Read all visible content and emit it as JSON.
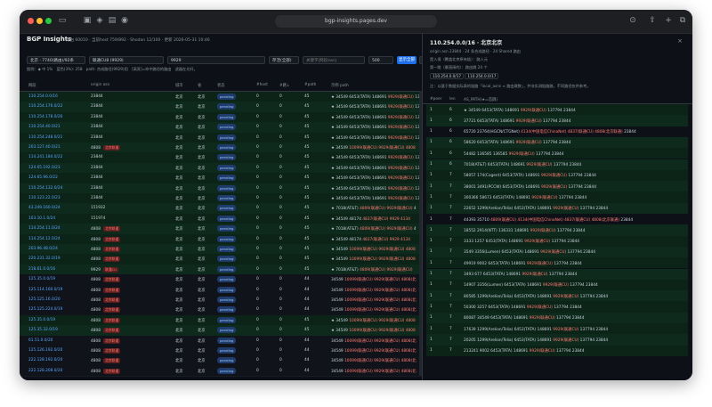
{
  "browser": {
    "url": "bgp-insights.pages.dev",
    "colors": {
      "close": "#ff5f57",
      "min": "#febc2e",
      "max": "#28c840"
    },
    "icons": [
      "sidebar-icon",
      "tab-icon",
      "shield-icon",
      "refresh-icon",
      "download-icon",
      "share-icon",
      "new-tab-icon",
      "tabs-icon"
    ]
  },
  "header": {
    "title": "BGP Insights",
    "meta": "路由 60010 · 当前host 759/892 · Shodan 12/100 · 更新 2026-05-31 10:46"
  },
  "filters": {
    "region": "北京 · 7740(路由)/92条",
    "carrier": "联通CU8 (9929)",
    "asn": "9929",
    "status": "存活(全部)",
    "search_placeholder": "关键字(网段/asn)",
    "limit": "500",
    "query_button": "显示全部",
    "export_button": "导出"
  },
  "legend": "图例：◆ 中 1%　蓝色(3%): 258　path: 合成路径(9929)用　[高亮]=命中路径的路由　滤器在光纤。",
  "table": {
    "columns": [
      "网段",
      "origin asn",
      "城市",
      "省",
      "状态",
      "#host",
      "#路↓",
      "#path",
      "示例 path"
    ],
    "rows": [
      {
        "prefix": "110.254.0.0/16",
        "asn": "23844",
        "asn_tag": "",
        "city": "北京",
        "prov": "北京",
        "status": "pending",
        "host": "0",
        "routes": "0",
        "paths": "45",
        "path": "★ 34549 6453(TATA) 148691 9929(联通CU) 137"
      },
      {
        "prefix": "110.254.176.0/22",
        "asn": "23844",
        "asn_tag": "",
        "city": "北京",
        "prov": "北京",
        "status": "pending",
        "host": "0",
        "routes": "0",
        "paths": "45",
        "path": "★ 34549 6453(TATA) 148691 9929(联通CU) 137"
      },
      {
        "prefix": "110.254.178.0/26",
        "asn": "23844",
        "asn_tag": "",
        "city": "北京",
        "prov": "北京",
        "status": "pending",
        "host": "0",
        "routes": "0",
        "paths": "45",
        "path": "★ 34549 6453(TATA) 148691 9929(联通CU) 137"
      },
      {
        "prefix": "110.254.40.0/21",
        "asn": "23844",
        "asn_tag": "",
        "city": "北京",
        "prov": "北京",
        "status": "pending",
        "host": "0",
        "routes": "0",
        "paths": "45",
        "path": "★ 34549 6453(TATA) 148691 9929(联通CU) 137"
      },
      {
        "prefix": "110.254.248.0/21",
        "asn": "23844",
        "asn_tag": "",
        "city": "北京",
        "prov": "北京",
        "status": "pending",
        "host": "0",
        "routes": "0",
        "paths": "45",
        "path": "★ 34549 6453(TATA) 148691 9929(联通CU) 137"
      },
      {
        "prefix": "203.127.40.0/21",
        "asn": "4808",
        "asn_tag": "北京联通",
        "city": "北京",
        "prov": "北京",
        "status": "pending",
        "host": "0",
        "routes": "0",
        "paths": "45",
        "path": "★ 34549 10099(联通CU) 9929(联通CU) 4808"
      },
      {
        "prefix": "114.241.184.0/22",
        "asn": "23844",
        "asn_tag": "",
        "city": "北京",
        "prov": "北京",
        "status": "pending",
        "host": "0",
        "routes": "0",
        "paths": "45",
        "path": "★ 34549 6453(TATA) 148691 9929(联通CU) 137"
      },
      {
        "prefix": "124.65.192.0/23",
        "asn": "23844",
        "asn_tag": "",
        "city": "北京",
        "prov": "北京",
        "status": "pending",
        "host": "0",
        "routes": "0",
        "paths": "45",
        "path": "★ 34549 6453(TATA) 148691 9929(联通CU) 137"
      },
      {
        "prefix": "124.65.96.0/22",
        "asn": "23844",
        "asn_tag": "",
        "city": "北京",
        "prov": "北京",
        "status": "pending",
        "host": "0",
        "routes": "0",
        "paths": "45",
        "path": "★ 34549 6453(TATA) 148691 9929(联通CU) 137"
      },
      {
        "prefix": "110.254.132.0/24",
        "asn": "23844",
        "asn_tag": "",
        "city": "北京",
        "prov": "北京",
        "status": "pending",
        "host": "0",
        "routes": "0",
        "paths": "45",
        "path": "★ 34549 6453(TATA) 148691 9929(联通CU) 137"
      },
      {
        "prefix": "110.123.22.0/23",
        "asn": "23844",
        "asn_tag": "",
        "city": "北京",
        "prov": "北京",
        "status": "pending",
        "host": "0",
        "routes": "0",
        "paths": "45",
        "path": "★ 34549 6453(TATA) 148691 9929(联通CU) 137"
      },
      {
        "prefix": "43.249.160.0/24",
        "asn": "151932",
        "asn_tag": "",
        "city": "北京",
        "prov": "北京",
        "status": "pending",
        "host": "0",
        "routes": "0",
        "paths": "45",
        "path": "★ 7018(AT&T) 4809(联通CU) 9929(联通CU) 4"
      },
      {
        "prefix": "103.10.1.0/24",
        "asn": "151974",
        "asn_tag": "",
        "city": "北京",
        "prov": "北京",
        "status": "pending",
        "host": "0",
        "routes": "0",
        "paths": "45",
        "path": "★ 34549 48174 4837(联通CU) 9929 4134"
      },
      {
        "prefix": "114.254.11.0/24",
        "asn": "4808",
        "asn_tag": "北京联通",
        "city": "北京",
        "prov": "北京",
        "status": "pending",
        "host": "0",
        "routes": "0",
        "paths": "45",
        "path": "★ 7018(AT&T) 4809(联通CU) 9929(联通CU) 4"
      },
      {
        "prefix": "114.254.12.0/24",
        "asn": "4808",
        "asn_tag": "北京联通",
        "city": "北京",
        "prov": "北京",
        "status": "pending",
        "host": "0",
        "routes": "0",
        "paths": "45",
        "path": "★ 34549 48174 4837(联通CU) 9929 4134"
      },
      {
        "prefix": "203.96.48.0/24",
        "asn": "4808",
        "asn_tag": "北京联通",
        "city": "北京",
        "prov": "北京",
        "status": "pending",
        "host": "0",
        "routes": "0",
        "paths": "45",
        "path": "★ 34549 10099(联通CU) 9929(联通CU) 4808"
      },
      {
        "prefix": "220.231.32.0/19",
        "asn": "4808",
        "asn_tag": "北京联通",
        "city": "北京",
        "prov": "北京",
        "status": "pending",
        "host": "0",
        "routes": "0",
        "paths": "45",
        "path": "★ 34549 10099(联通CU) 9929(联通CU) 4808"
      },
      {
        "prefix": "218.61.0.0/16",
        "asn": "9929",
        "asn_tag": "联通CU",
        "city": "北京",
        "prov": "北京",
        "status": "pending",
        "host": "0",
        "routes": "0",
        "paths": "45",
        "path": "★ 7018(AT&T) 4809(联通CU) 9929(联通CU)"
      },
      {
        "prefix": "125.35.0.0/19",
        "asn": "4808",
        "asn_tag": "北京联通",
        "city": "北京",
        "prov": "北京",
        "status": "pending",
        "host": "0",
        "routes": "0",
        "paths": "44",
        "path": "34549 10099(联通CU) 9929(联通CU) 4808(北"
      },
      {
        "prefix": "125.114.160.0/19",
        "asn": "4808",
        "asn_tag": "北京联通",
        "city": "北京",
        "prov": "北京",
        "status": "pending",
        "host": "0",
        "routes": "0",
        "paths": "44",
        "path": "34549 10099(联通CU) 9929(联通CU) 4808(北"
      },
      {
        "prefix": "125.125.16.0/20",
        "asn": "4808",
        "asn_tag": "北京联通",
        "city": "北京",
        "prov": "北京",
        "status": "pending",
        "host": "0",
        "routes": "0",
        "paths": "44",
        "path": "34549 10099(联通CU) 9929(联通CU) 4808(北"
      },
      {
        "prefix": "125.125.224.0/19",
        "asn": "4808",
        "asn_tag": "北京联通",
        "city": "北京",
        "prov": "北京",
        "status": "pending",
        "host": "0",
        "routes": "0",
        "paths": "44",
        "path": "34549 10099(联通CU) 9929(联通CU) 4808(北"
      },
      {
        "prefix": "125.35.0.0/19",
        "asn": "4808",
        "asn_tag": "北京联通",
        "city": "北京",
        "prov": "北京",
        "status": "pending",
        "host": "0",
        "routes": "0",
        "paths": "45",
        "path": "★ 34549 10099(联通CU) 9929(联通CU) 4808"
      },
      {
        "prefix": "125.35.32.0/19",
        "asn": "4808",
        "asn_tag": "北京联通",
        "city": "北京",
        "prov": "北京",
        "status": "pending",
        "host": "0",
        "routes": "0",
        "paths": "45",
        "path": "★ 34549 10099(联通CU) 9929(联通CU) 4808"
      },
      {
        "prefix": "61.51.0.0/20",
        "asn": "4808",
        "asn_tag": "北京联通",
        "city": "北京",
        "prov": "北京",
        "status": "pending",
        "host": "0",
        "routes": "0",
        "paths": "44",
        "path": "34549 10099(联通CU) 9929(联通CU) 4808(北"
      },
      {
        "prefix": "125.126.192.0/20",
        "asn": "4808",
        "asn_tag": "北京联通",
        "city": "北京",
        "prov": "北京",
        "status": "pending",
        "host": "0",
        "routes": "0",
        "paths": "44",
        "path": "34549 10099(联通CU) 9929(联通CU) 4808(北"
      },
      {
        "prefix": "222.128.192.0/20",
        "asn": "4808",
        "asn_tag": "北京联通",
        "city": "北京",
        "prov": "北京",
        "status": "pending",
        "host": "0",
        "routes": "0",
        "paths": "44",
        "path": "34549 10099(联通CU) 9929(联通CU) 4808(北"
      },
      {
        "prefix": "222.128.208.0/20",
        "asn": "4808",
        "asn_tag": "北京联通",
        "city": "北京",
        "prov": "北京",
        "status": "pending",
        "host": "0",
        "routes": "0",
        "paths": "44",
        "path": "34549 10099(联通CU) 9929(联通CU) 4808(北"
      }
    ]
  },
  "panel": {
    "title": "110.254.0.0/16 · 北京北京",
    "line1": "origin asn 23844 · 24 条合成路径 · 24 Shared 路由",
    "line2": "是入境（覆盖北京原有链）：路入元",
    "line3": "第一跳（最直接的）：路由跳 24 个",
    "ip_label": "110.254.0.0/17",
    "ip_label2": "110.254.0.0/17",
    "note": "注：以基于数据实际表的链路「local_asns ≈ 路由跳数」，并非实测链路路，不同路径仅供参考。",
    "columns": [
      "#peer",
      "len",
      "AS_PATH(★=首跳)"
    ],
    "rows": [
      {
        "peer": "1",
        "len": "6",
        "path": "★ 34549 6453(TATA) 148691 9929(联通CU) 137794 23844"
      },
      {
        "peer": "1",
        "len": "6",
        "path": "37721 6453(TATA) 148691 9929(联通CU) 137794 23844"
      },
      {
        "peer": "1",
        "len": "6",
        "path": "65720 23764(HGCN/CTGNet) 4134(中国电信ChinaNet) 4837(联通CU) 4808(北京联通) 23844"
      },
      {
        "peer": "1",
        "len": "6",
        "path": "58620 6453(TATA) 148691 9929(联通CU) 137794 23844"
      },
      {
        "peer": "1",
        "len": "6",
        "path": "54482 136585 136585 9929(联通CU) 137794 23844"
      },
      {
        "peer": "1",
        "len": "6",
        "path": "7018(AT&T) 6453(TATA) 148691 9929(联通CU) 137794 23844"
      },
      {
        "peer": "1",
        "len": "7",
        "path": "58057 174(Cogent) 6453(TATA) 148691 9929(联通CU) 137794 23844"
      },
      {
        "peer": "1",
        "len": "7",
        "path": "38001 3491(PCCW) 6453(TATA) 148691 9929(联通CU) 137794 23844"
      },
      {
        "peer": "1",
        "len": "7",
        "path": "300366 58673 6453(TATA) 148691 9929(联通CU) 137794 23844"
      },
      {
        "peer": "1",
        "len": "7",
        "path": "22652 1299(Arelion/Telia) 6453(TATA) 148691 9929(联通CU) 137794 23844"
      },
      {
        "peer": "1",
        "len": "7",
        "path": "44393 35710 4809(联通CU) 4134(中国电信ChinaNet) 4837(联通CU) 4808(北京联通) 23844"
      },
      {
        "peer": "1",
        "len": "7",
        "path": "18552 2914(NTT) 136331 148691 9929(联通CU) 137794 23844"
      },
      {
        "peer": "1",
        "len": "7",
        "path": "3333 1257 6453(TATA) 148691 9929(联通CU) 137794 23844"
      },
      {
        "peer": "1",
        "len": "7",
        "path": "3549 3356(Lumen) 6453(TATA) 148691 9929(联通CU) 137794 23844"
      },
      {
        "peer": "1",
        "len": "7",
        "path": "49919 9002 6453(TATA) 148691 9929(联通CU) 137794 23844"
      },
      {
        "peer": "1",
        "len": "7",
        "path": "3493 677 6453(TATA) 148691 9929(联通CU) 137794 23844"
      },
      {
        "peer": "1",
        "len": "7",
        "path": "14907 3356(Lumen) 6453(TATA) 148691 9929(联通CU) 137794 23844"
      },
      {
        "peer": "1",
        "len": "7",
        "path": "80585 1299(Arelion/Telia) 6453(TATA) 148691 9929(联通CU) 137794 23844"
      },
      {
        "peer": "1",
        "len": "7",
        "path": "50300 3257 6453(TATA) 148691 9929(联通CU) 137794 23844"
      },
      {
        "peer": "1",
        "len": "7",
        "path": "80087 34549 6453(TATA) 148691 9929(联通CU) 137794 23844"
      },
      {
        "peer": "1",
        "len": "7",
        "path": "17639 1299(Arelion/Telia) 6453(TATA) 148691 9929(联通CU) 137794 23844"
      },
      {
        "peer": "1",
        "len": "7",
        "path": "20205 1299(Arelion/Telia) 6453(TATA) 148691 9929(联通CU) 137794 23844"
      },
      {
        "peer": "1",
        "len": "7",
        "path": "213241 9002 6453(TATA) 148691 9929(联通CU) 137794 23844"
      }
    ]
  }
}
